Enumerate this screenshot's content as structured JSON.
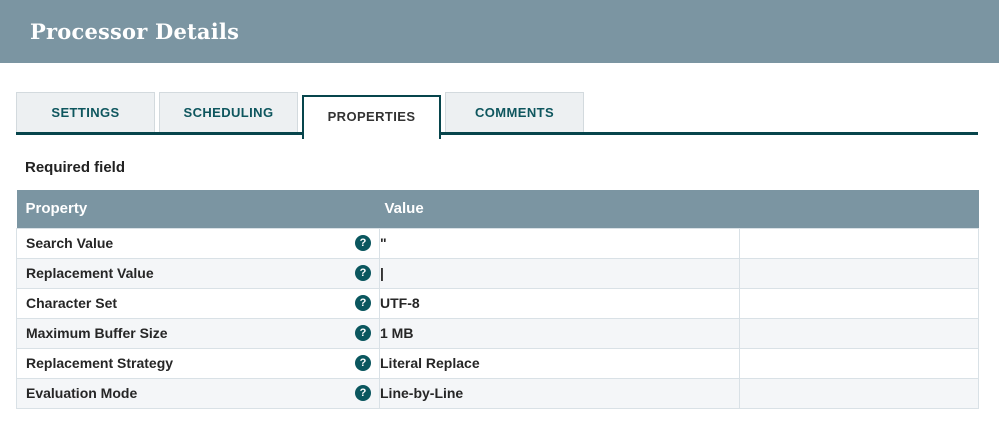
{
  "header": {
    "title": "Processor Details"
  },
  "tabs": [
    {
      "label": "SETTINGS",
      "active": false
    },
    {
      "label": "SCHEDULING",
      "active": false
    },
    {
      "label": "PROPERTIES",
      "active": true
    },
    {
      "label": "COMMENTS",
      "active": false
    }
  ],
  "required_field_label": "Required field",
  "table": {
    "columns": [
      "Property",
      "Value"
    ],
    "rows": [
      {
        "property": "Search Value",
        "value": "\""
      },
      {
        "property": "Replacement Value",
        "value": "|"
      },
      {
        "property": "Character Set",
        "value": "UTF-8"
      },
      {
        "property": "Maximum Buffer Size",
        "value": "1 MB"
      },
      {
        "property": "Replacement Strategy",
        "value": "Literal Replace"
      },
      {
        "property": "Evaluation Mode",
        "value": "Line-by-Line"
      }
    ]
  },
  "icons": {
    "help": "?"
  },
  "colors": {
    "header_bg": "#7b95a2",
    "teal_dark": "#07454c",
    "teal_text": "#0e565e",
    "icon_bg": "#0a565e",
    "tab_inactive_bg": "#edf0f2",
    "tab_border": "#d3dade",
    "table_border": "#d9e1e6",
    "zebra_bg": "#f4f6f8",
    "body_text": "#262626"
  }
}
